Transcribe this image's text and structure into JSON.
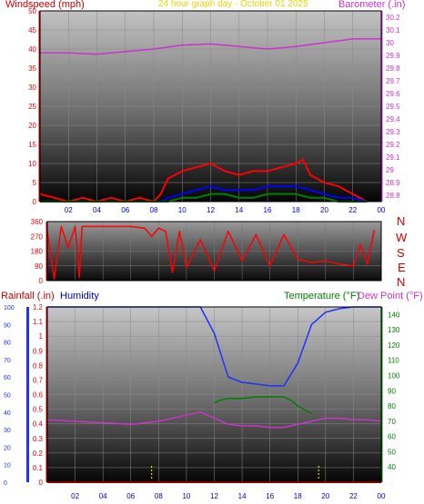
{
  "header": {
    "windspeed_label": "Windspeed (mph)",
    "title": "24 hour graph day - October 01 2025",
    "barometer_label": "Barometer (.in)"
  },
  "colors": {
    "wind": "#ff0000",
    "gust": "#0000ff",
    "avg_wind": "#008000",
    "barometer": "#cc33cc",
    "direction": "#ff0000",
    "rainfall": "#ff0000",
    "humidity": "#2030ff",
    "temperature": "#008000",
    "dewpoint": "#cc33cc",
    "title": "#e8d400",
    "axis_green": "#008000",
    "axis_blue": "#0000cc"
  },
  "bottom_labels": {
    "rainfall": "Rainfall (.in)",
    "humidity": "Humidity",
    "temperature": "Temperature (°F)",
    "dewpoint": "Dew Point (°F)"
  },
  "compass": [
    "N",
    "W",
    "S",
    "E",
    "N"
  ],
  "chart_data": [
    {
      "type": "line",
      "x_ticks": [
        "02",
        "04",
        "06",
        "08",
        "10",
        "12",
        "14",
        "16",
        "18",
        "20",
        "22",
        "00"
      ],
      "y_left_ticks": [
        "50",
        "45",
        "40",
        "35",
        "30",
        "25",
        "20",
        "15",
        "10",
        "5",
        "0"
      ],
      "y_right_ticks": [
        "30.2",
        "30.1",
        "30",
        "29.9",
        "29.8",
        "29.7",
        "29.6",
        "29.5",
        "29.4",
        "29.3",
        "29.2",
        "29.1",
        "29",
        "28.9",
        "28.8"
      ],
      "ylim_left": [
        0,
        50
      ],
      "ylim_right": [
        28.75,
        30.25
      ],
      "barometer": {
        "x": [
          0,
          2,
          4,
          6,
          8,
          10,
          12,
          14,
          16,
          18,
          20,
          22,
          24
        ],
        "values": [
          29.92,
          29.92,
          29.91,
          29.93,
          29.95,
          29.98,
          29.99,
          29.97,
          29.95,
          29.97,
          30.0,
          30.03,
          30.03
        ]
      },
      "windspeed": {
        "x": [
          0,
          1,
          2,
          3,
          4,
          5,
          6,
          7,
          8,
          8.5,
          9,
          10,
          11,
          12,
          13,
          14,
          15,
          16,
          17,
          18,
          18.5,
          19,
          20,
          21,
          22,
          23
        ],
        "values": [
          2,
          1,
          0,
          1,
          0,
          1,
          0,
          1,
          0,
          2,
          6,
          8,
          9,
          10,
          8,
          7,
          8,
          8,
          9,
          10,
          11,
          7,
          5,
          4,
          2,
          0
        ]
      },
      "gust": {
        "x": [
          0,
          8,
          8.5,
          9,
          10,
          11,
          12,
          13,
          14,
          15,
          16,
          17,
          18,
          19,
          20,
          21,
          22,
          23
        ],
        "values": [
          0,
          0,
          0,
          1,
          2,
          3,
          4,
          3,
          3,
          3,
          4,
          4,
          4,
          3,
          2,
          1,
          1,
          0
        ]
      },
      "avg_wind": {
        "x": [
          0,
          8.5,
          9,
          10,
          11,
          12,
          13,
          14,
          15,
          16,
          17,
          18,
          19,
          20,
          21,
          22,
          23
        ],
        "values": [
          0,
          0,
          0,
          1,
          1,
          2,
          2,
          1,
          1,
          2,
          2,
          2,
          1,
          1,
          0,
          0,
          0
        ]
      }
    },
    {
      "type": "line",
      "y_ticks": [
        "360",
        "270",
        "180",
        "90",
        "0"
      ],
      "ylim": [
        0,
        360
      ],
      "wind_direction": {
        "x": [
          0,
          0.3,
          0.5,
          1,
          1.5,
          2,
          2.3,
          2.5,
          3,
          4,
          5,
          6,
          7,
          7.5,
          8,
          8.5,
          9,
          9.5,
          10,
          11,
          12,
          13,
          14,
          15,
          16,
          17,
          18,
          19,
          20,
          21,
          22,
          22.5,
          23,
          23.5
        ],
        "values": [
          300,
          120,
          10,
          330,
          200,
          330,
          20,
          330,
          330,
          330,
          330,
          330,
          320,
          270,
          320,
          300,
          50,
          300,
          80,
          250,
          60,
          300,
          120,
          280,
          90,
          280,
          130,
          110,
          120,
          100,
          90,
          220,
          100,
          310
        ]
      }
    },
    {
      "type": "line",
      "x_ticks": [
        "02",
        "04",
        "06",
        "08",
        "10",
        "12",
        "14",
        "16",
        "18",
        "20",
        "22",
        "00"
      ],
      "y_humidity_ticks": [
        "100",
        "90",
        "80",
        "70",
        "60",
        "50",
        "40",
        "30",
        "20",
        "10",
        "0"
      ],
      "y_rain_ticks": [
        "1.2",
        "1.1",
        "1",
        "0.9",
        "0.8",
        "0.7",
        "0.6",
        "0.5",
        "0.4",
        "0.3",
        "0.2",
        "0.1",
        "0"
      ],
      "y_temp_ticks": [
        "140",
        "130",
        "120",
        "110",
        "100",
        "90",
        "80",
        "70",
        "60",
        "50",
        "40"
      ],
      "ylim_humidity": [
        0,
        100
      ],
      "ylim_rain": [
        0,
        1.2
      ],
      "ylim_temp": [
        30,
        145
      ],
      "humidity": {
        "x": [
          0,
          2,
          4,
          6,
          8,
          10,
          11,
          12,
          13,
          14,
          15,
          16,
          17,
          18,
          19,
          20,
          21,
          22,
          23,
          24
        ],
        "values": [
          100,
          100,
          100,
          100,
          100,
          100,
          100,
          85,
          60,
          57,
          56,
          55,
          55,
          68,
          90,
          97,
          99,
          100,
          100,
          100
        ]
      },
      "temperature": {
        "x": [
          12,
          12.5,
          13,
          14,
          15,
          16,
          17,
          17.5,
          18,
          19
        ],
        "values": [
          82,
          84,
          85,
          85,
          86,
          86,
          86,
          84,
          80,
          75
        ]
      },
      "dewpoint": {
        "x": [
          0,
          2,
          4,
          6,
          8,
          10,
          11,
          12,
          13,
          14,
          15,
          16,
          17,
          18,
          19,
          20,
          21,
          22,
          23,
          24
        ],
        "values": [
          71,
          70,
          69,
          68,
          70,
          74,
          76,
          72,
          68,
          67,
          67,
          66,
          66,
          68,
          70,
          72,
          72,
          71,
          71,
          70
        ]
      },
      "rainfall": {
        "x": [
          0,
          24
        ],
        "values": [
          0,
          0
        ]
      },
      "rain_markers_x": [
        7.5,
        19.5
      ]
    }
  ]
}
